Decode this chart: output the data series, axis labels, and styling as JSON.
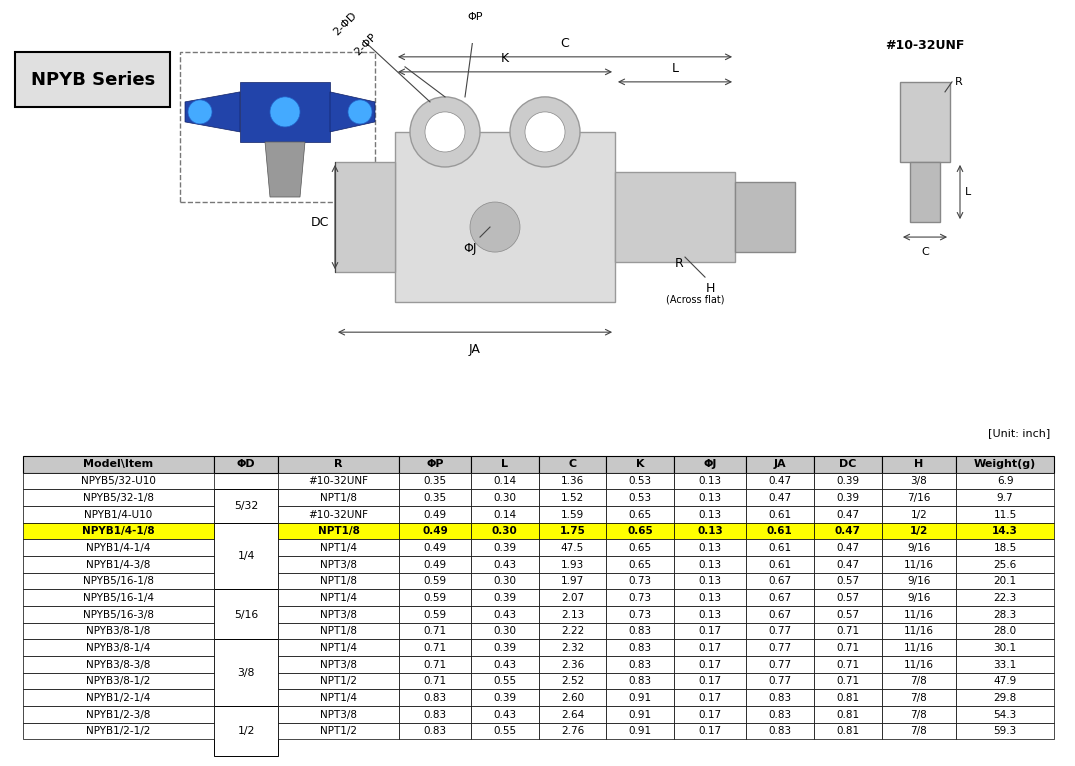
{
  "title": "NPYB Series",
  "unit_note": "[Unit: inch]",
  "highlight_row_idx": 3,
  "highlight_color": "#FFFF00",
  "header_bg": "#C8C8C8",
  "columns": [
    "Model\\Item",
    "ΦD",
    "R",
    "ΦP",
    "L",
    "C",
    "K",
    "ΦJ",
    "JA",
    "DC",
    "H",
    "Weight(g)"
  ],
  "col_widths": [
    1.55,
    0.52,
    0.98,
    0.58,
    0.55,
    0.55,
    0.55,
    0.58,
    0.55,
    0.55,
    0.6,
    0.8
  ],
  "rows": [
    [
      "NPYB5/32-U10",
      "5/32",
      "#10-32UNF",
      "0.35",
      "0.14",
      "1.36",
      "0.53",
      "0.13",
      "0.47",
      "0.39",
      "3/8",
      "6.9"
    ],
    [
      "NPYB5/32-1/8",
      "5/32",
      "NPT1/8",
      "0.35",
      "0.30",
      "1.52",
      "0.53",
      "0.13",
      "0.47",
      "0.39",
      "7/16",
      "9.7"
    ],
    [
      "NPYB1/4-U10",
      "1/4",
      "#10-32UNF",
      "0.49",
      "0.14",
      "1.59",
      "0.65",
      "0.13",
      "0.61",
      "0.47",
      "1/2",
      "11.5"
    ],
    [
      "NPYB1/4-1/8",
      "1/4",
      "NPT1/8",
      "0.49",
      "0.30",
      "1.75",
      "0.65",
      "0.13",
      "0.61",
      "0.47",
      "1/2",
      "14.3"
    ],
    [
      "NPYB1/4-1/4",
      "1/4",
      "NPT1/4",
      "0.49",
      "0.39",
      "47.5",
      "0.65",
      "0.13",
      "0.61",
      "0.47",
      "9/16",
      "18.5"
    ],
    [
      "NPYB1/4-3/8",
      "1/4",
      "NPT3/8",
      "0.49",
      "0.43",
      "1.93",
      "0.65",
      "0.13",
      "0.61",
      "0.47",
      "11/16",
      "25.6"
    ],
    [
      "NPYB5/16-1/8",
      "5/16",
      "NPT1/8",
      "0.59",
      "0.30",
      "1.97",
      "0.73",
      "0.13",
      "0.67",
      "0.57",
      "9/16",
      "20.1"
    ],
    [
      "NPYB5/16-1/4",
      "5/16",
      "NPT1/4",
      "0.59",
      "0.39",
      "2.07",
      "0.73",
      "0.13",
      "0.67",
      "0.57",
      "9/16",
      "22.3"
    ],
    [
      "NPYB5/16-3/8",
      "5/16",
      "NPT3/8",
      "0.59",
      "0.43",
      "2.13",
      "0.73",
      "0.13",
      "0.67",
      "0.57",
      "11/16",
      "28.3"
    ],
    [
      "NPYB3/8-1/8",
      "3/8",
      "NPT1/8",
      "0.71",
      "0.30",
      "2.22",
      "0.83",
      "0.17",
      "0.77",
      "0.71",
      "11/16",
      "28.0"
    ],
    [
      "NPYB3/8-1/4",
      "3/8",
      "NPT1/4",
      "0.71",
      "0.39",
      "2.32",
      "0.83",
      "0.17",
      "0.77",
      "0.71",
      "11/16",
      "30.1"
    ],
    [
      "NPYB3/8-3/8",
      "3/8",
      "NPT3/8",
      "0.71",
      "0.43",
      "2.36",
      "0.83",
      "0.17",
      "0.77",
      "0.71",
      "11/16",
      "33.1"
    ],
    [
      "NPYB3/8-1/2",
      "3/8",
      "NPT1/2",
      "0.71",
      "0.55",
      "2.52",
      "0.83",
      "0.17",
      "0.77",
      "0.71",
      "7/8",
      "47.9"
    ],
    [
      "NPYB1/2-1/4",
      "1/2",
      "NPT1/4",
      "0.83",
      "0.39",
      "2.60",
      "0.91",
      "0.17",
      "0.83",
      "0.81",
      "7/8",
      "29.8"
    ],
    [
      "NPYB1/2-3/8",
      "1/2",
      "NPT3/8",
      "0.83",
      "0.43",
      "2.64",
      "0.91",
      "0.17",
      "0.83",
      "0.81",
      "7/8",
      "54.3"
    ],
    [
      "NPYB1/2-1/2",
      "1/2",
      "NPT1/2",
      "0.83",
      "0.55",
      "2.76",
      "0.91",
      "0.17",
      "0.83",
      "0.81",
      "7/8",
      "59.3"
    ]
  ],
  "merged_col1": [
    {
      "label": "5/32",
      "rows": [
        0,
        1
      ]
    },
    {
      "label": "1/4",
      "rows": [
        2,
        3,
        4,
        5
      ]
    },
    {
      "label": "5/16",
      "rows": [
        6,
        7,
        8
      ]
    },
    {
      "label": "3/8",
      "rows": [
        9,
        10,
        11,
        12
      ]
    },
    {
      "label": "1/2",
      "rows": [
        13,
        14,
        15
      ]
    }
  ],
  "diagram_labels": {
    "top_labels": [
      "ΦP",
      "C",
      "K",
      "L",
      "ΦD",
      "2-ΦD",
      "2-ΦP"
    ],
    "bottom_labels": [
      "JA",
      "ΦJ",
      "H\n(Across flat)",
      "R",
      "DC"
    ],
    "side_note": "#10-32UNF"
  }
}
